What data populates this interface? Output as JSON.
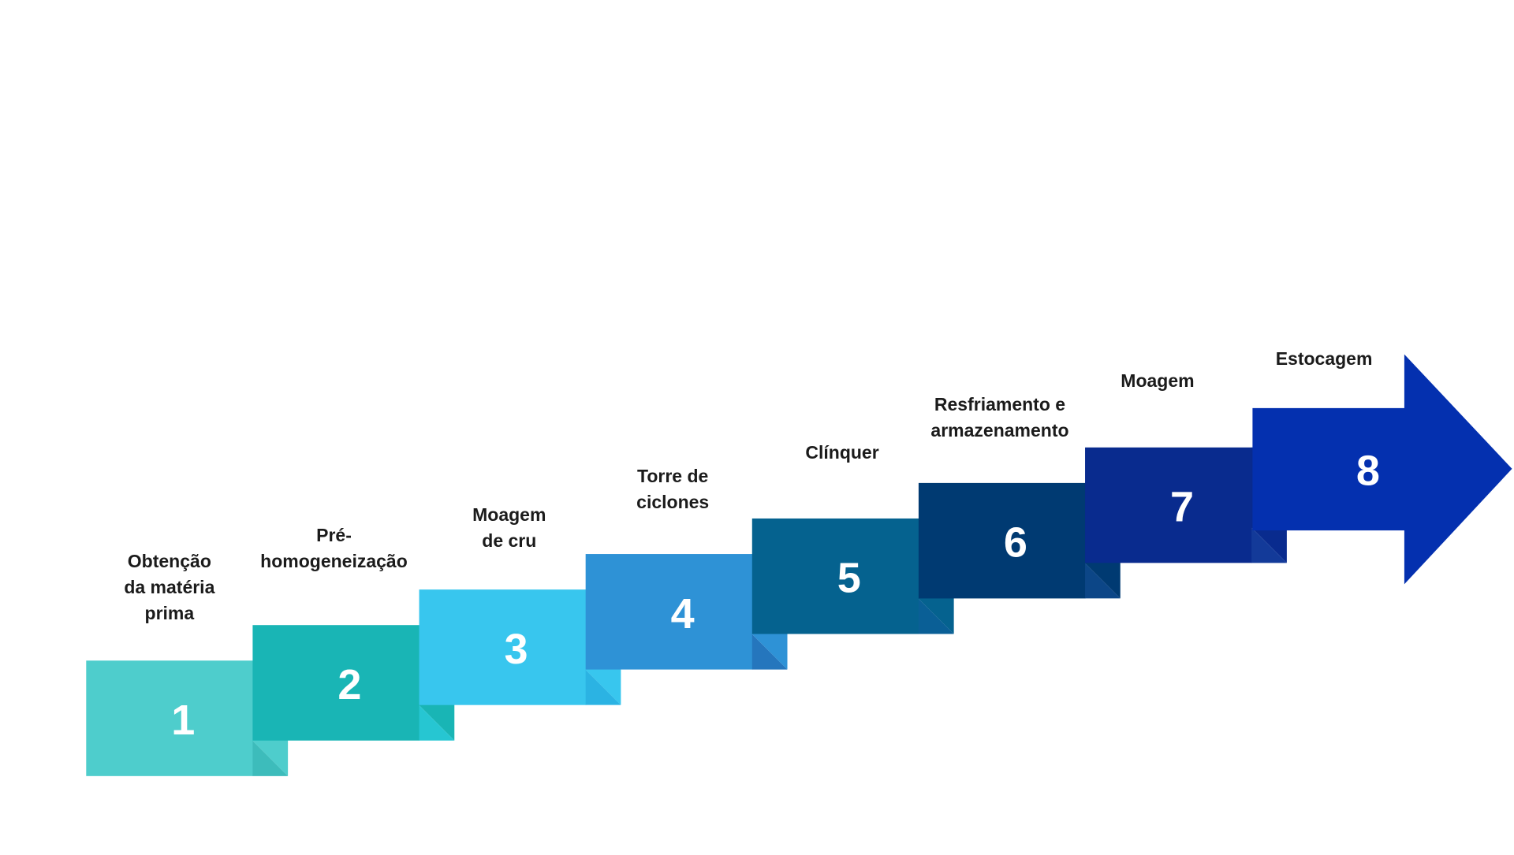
{
  "steps": [
    {
      "number": "1",
      "label_lines": [
        "Obtenção",
        "da matéria",
        "prima"
      ],
      "color": "#4ecdcc",
      "fold_color": "#3dbcbb"
    },
    {
      "number": "2",
      "label_lines": [
        "Pré-",
        "homogeneização"
      ],
      "color": "#19b5b5",
      "fold_color": "#26c6d2"
    },
    {
      "number": "3",
      "label_lines": [
        "Moagem",
        "de cru"
      ],
      "color": "#38c6ee",
      "fold_color": "#2bb3e3"
    },
    {
      "number": "4",
      "label_lines": [
        "Torre de",
        "ciclones"
      ],
      "color": "#2e92d6",
      "fold_color": "#2576bd"
    },
    {
      "number": "5",
      "label_lines": [
        "Clínquer"
      ],
      "color": "#05628f",
      "fold_color": "#0a5f96"
    },
    {
      "number": "6",
      "label_lines": [
        "Resfriamento e",
        "armazenamento"
      ],
      "color": "#003a72",
      "fold_color": "#0c4687"
    },
    {
      "number": "7",
      "label_lines": [
        "Moagem"
      ],
      "color": "#092b8e",
      "fold_color": "#133a99"
    },
    {
      "number": "8",
      "label_lines": [
        "Estocagem"
      ],
      "color": "#0430af",
      "fold_color": "#0a3aa9"
    }
  ]
}
